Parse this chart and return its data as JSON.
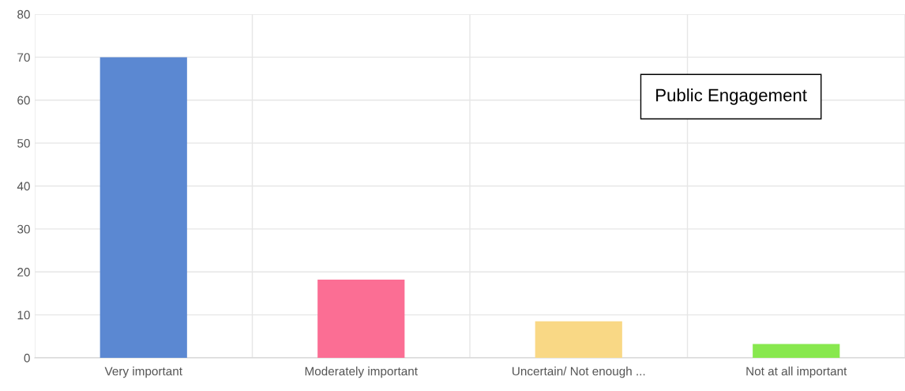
{
  "chart_data": {
    "type": "bar",
    "title": "Public Engagement",
    "categories": [
      "Very important",
      "Moderately important",
      "Uncertain/ Not enough ...",
      "Not at all important"
    ],
    "values": [
      70,
      18.2,
      8.5,
      3.2
    ],
    "colors": [
      "#5b88d2",
      "#fb6e94",
      "#f9d885",
      "#88e84e"
    ],
    "ylim": [
      0,
      80
    ],
    "yticks": [
      0,
      10,
      20,
      30,
      40,
      50,
      60,
      70,
      80
    ],
    "grid": true
  }
}
